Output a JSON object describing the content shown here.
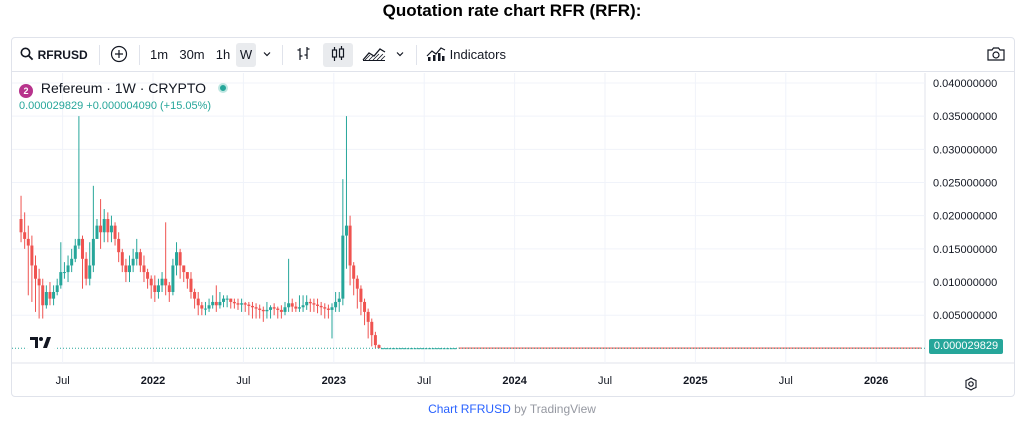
{
  "page_title": "Quotation rate chart RFR (RFR):",
  "toolbar": {
    "symbol": "RFRUSD",
    "intervals": [
      "1m",
      "30m",
      "1h",
      "W"
    ],
    "active_interval": "W",
    "indicators_label": "Indicators"
  },
  "legend": {
    "logo_letter": "2",
    "title": "Refereum · 1W · CRYPTO",
    "values": "0.000029829  +0.000004090 (+15.05%)"
  },
  "price_label": "0.000029829",
  "footer": {
    "link": "Chart RFRUSD",
    "by": "by TradingView"
  },
  "colors": {
    "up": "#26a69a",
    "down": "#ef5350",
    "grid": "#f0f3fa",
    "axis_text": "#131722"
  },
  "chart_data": {
    "type": "candlestick",
    "title": "",
    "yticks": [
      "0.040000000",
      "0.035000000",
      "0.030000000",
      "0.025000000",
      "0.020000000",
      "0.015000000",
      "0.010000000",
      "0.005000000"
    ],
    "ytick_values": [
      0.04,
      0.035,
      0.03,
      0.025,
      0.02,
      0.015,
      0.01,
      0.005
    ],
    "xticks": [
      {
        "label": "Jul",
        "t": 2021.5,
        "bold": false
      },
      {
        "label": "2022",
        "t": 2022.0,
        "bold": true
      },
      {
        "label": "Jul",
        "t": 2022.5,
        "bold": false
      },
      {
        "label": "2023",
        "t": 2023.0,
        "bold": true
      },
      {
        "label": "Jul",
        "t": 2023.5,
        "bold": false
      },
      {
        "label": "2024",
        "t": 2024.0,
        "bold": true
      },
      {
        "label": "Jul",
        "t": 2024.5,
        "bold": false
      },
      {
        "label": "2025",
        "t": 2025.0,
        "bold": true
      },
      {
        "label": "Jul",
        "t": 2025.5,
        "bold": false
      },
      {
        "label": "2026",
        "t": 2026.0,
        "bold": true
      }
    ],
    "ylim": [
      -0.0022,
      0.0415
    ],
    "xlim": [
      2021.22,
      2026.27
    ],
    "last_price": 2.9829e-05,
    "series_sample": {
      "t": [
        2021.27,
        2021.29,
        2021.31,
        2021.33,
        2021.35,
        2021.37,
        2021.39,
        2021.41,
        2021.43,
        2021.45,
        2021.47,
        2021.49,
        2021.51,
        2021.53,
        2021.55,
        2021.57,
        2021.59,
        2021.61,
        2021.63,
        2021.65,
        2021.67,
        2021.69,
        2021.71,
        2021.73,
        2021.75,
        2021.77,
        2021.79,
        2021.81,
        2021.83,
        2021.85,
        2021.87,
        2021.89,
        2021.91,
        2021.93,
        2021.95,
        2021.97,
        2021.99,
        2022.01,
        2022.03,
        2022.05,
        2022.07,
        2022.09,
        2022.11,
        2022.13,
        2022.15,
        2022.17,
        2022.19,
        2022.21,
        2022.23,
        2022.25,
        2022.27,
        2022.29,
        2022.31,
        2022.33,
        2022.35,
        2022.37,
        2022.39,
        2022.41,
        2022.43,
        2022.45,
        2022.47,
        2022.49,
        2022.51,
        2022.53,
        2022.55,
        2022.57,
        2022.59,
        2022.61,
        2022.63,
        2022.65,
        2022.67,
        2022.69,
        2022.71,
        2022.73,
        2022.75,
        2022.77,
        2022.79,
        2022.81,
        2022.83,
        2022.85,
        2022.87,
        2022.89,
        2022.91,
        2022.93,
        2022.95,
        2022.97,
        2022.99,
        2023.01,
        2023.03,
        2023.05,
        2023.07,
        2023.09,
        2023.11,
        2023.13,
        2023.15,
        2023.17,
        2023.19,
        2023.21,
        2023.23,
        2023.25,
        2023.27,
        2023.29,
        2023.31,
        2023.33,
        2023.35,
        2023.37,
        2023.39,
        2023.41,
        2023.43,
        2023.45,
        2023.47,
        2023.49,
        2023.51,
        2023.53,
        2023.55,
        2023.57,
        2023.59,
        2023.61,
        2023.63,
        2023.65,
        2023.67
      ],
      "o": [
        0.0195,
        0.0175,
        0.0165,
        0.0155,
        0.0125,
        0.0105,
        0.0095,
        0.0065,
        0.0085,
        0.0075,
        0.0085,
        0.0095,
        0.0115,
        0.0115,
        0.0125,
        0.0135,
        0.0155,
        0.0165,
        0.0135,
        0.0105,
        0.0125,
        0.0165,
        0.0185,
        0.0175,
        0.0195,
        0.0175,
        0.0185,
        0.0165,
        0.0145,
        0.0125,
        0.0115,
        0.0125,
        0.0135,
        0.0145,
        0.0125,
        0.0115,
        0.0105,
        0.0095,
        0.0085,
        0.0095,
        0.0105,
        0.0095,
        0.0085,
        0.0125,
        0.0145,
        0.0125,
        0.0115,
        0.0105,
        0.0085,
        0.0075,
        0.0065,
        0.006,
        0.006,
        0.0065,
        0.007,
        0.0065,
        0.007,
        0.0075,
        0.0075,
        0.007,
        0.0068,
        0.0066,
        0.0068,
        0.0066,
        0.0064,
        0.0062,
        0.006,
        0.0058,
        0.0056,
        0.0058,
        0.0062,
        0.006,
        0.0058,
        0.0055,
        0.0062,
        0.0068,
        0.0063,
        0.006,
        0.0062,
        0.0065,
        0.007,
        0.0068,
        0.0066,
        0.0064,
        0.0062,
        0.006,
        0.0058,
        0.0062,
        0.007,
        0.0075,
        0.017,
        0.0185,
        0.0125,
        0.0105,
        0.009,
        0.007,
        0.0055,
        0.004,
        0.002,
        0.0005,
        3e-05,
        3e-05,
        3e-05,
        3e-05,
        3e-05,
        3e-05,
        3e-05,
        3e-05,
        3e-05,
        3e-05,
        3e-05,
        3e-05,
        3e-05,
        3e-05,
        3e-05,
        3e-05,
        3e-05,
        3e-05,
        3e-05,
        3e-05,
        3e-05
      ],
      "c": [
        0.0175,
        0.0165,
        0.0155,
        0.0125,
        0.0105,
        0.0095,
        0.0065,
        0.0085,
        0.0075,
        0.0085,
        0.0095,
        0.0115,
        0.0115,
        0.0125,
        0.0135,
        0.0155,
        0.0165,
        0.0135,
        0.0105,
        0.0125,
        0.0165,
        0.0185,
        0.0175,
        0.0195,
        0.0175,
        0.0185,
        0.0165,
        0.0145,
        0.0125,
        0.0115,
        0.0125,
        0.0135,
        0.0145,
        0.0125,
        0.0115,
        0.0105,
        0.0095,
        0.0085,
        0.0095,
        0.0105,
        0.0095,
        0.0085,
        0.0125,
        0.0145,
        0.0125,
        0.0115,
        0.0105,
        0.0085,
        0.0075,
        0.0065,
        0.006,
        0.006,
        0.0065,
        0.007,
        0.0065,
        0.007,
        0.0075,
        0.0075,
        0.007,
        0.0068,
        0.0066,
        0.0068,
        0.0066,
        0.0064,
        0.0062,
        0.006,
        0.0058,
        0.0056,
        0.0058,
        0.0062,
        0.006,
        0.0058,
        0.0055,
        0.0062,
        0.0068,
        0.0063,
        0.006,
        0.0062,
        0.0065,
        0.007,
        0.0068,
        0.0066,
        0.0064,
        0.0062,
        0.006,
        0.0058,
        0.0062,
        0.007,
        0.0075,
        0.017,
        0.0185,
        0.0125,
        0.0105,
        0.009,
        0.007,
        0.0055,
        0.004,
        0.002,
        0.0005,
        3e-05,
        3e-05,
        3e-05,
        3e-05,
        3e-05,
        3e-05,
        3e-05,
        3e-05,
        3e-05,
        3e-05,
        3e-05,
        3e-05,
        3e-05,
        3e-05,
        3e-05,
        3e-05,
        3e-05,
        3e-05,
        3e-05,
        3e-05,
        3e-05,
        3e-05
      ],
      "h": [
        0.023,
        0.0205,
        0.0185,
        0.017,
        0.014,
        0.012,
        0.0105,
        0.0095,
        0.01,
        0.0095,
        0.0105,
        0.016,
        0.013,
        0.014,
        0.015,
        0.0165,
        0.035,
        0.017,
        0.0145,
        0.016,
        0.0245,
        0.0195,
        0.0225,
        0.021,
        0.0205,
        0.02,
        0.019,
        0.0175,
        0.015,
        0.0135,
        0.014,
        0.015,
        0.0165,
        0.015,
        0.014,
        0.012,
        0.011,
        0.011,
        0.0105,
        0.0115,
        0.019,
        0.01,
        0.0135,
        0.016,
        0.015,
        0.0125,
        0.0115,
        0.0115,
        0.009,
        0.0085,
        0.007,
        0.007,
        0.0075,
        0.008,
        0.0095,
        0.0085,
        0.008,
        0.008,
        0.0075,
        0.0075,
        0.0075,
        0.0075,
        0.007,
        0.007,
        0.007,
        0.0068,
        0.0066,
        0.0063,
        0.007,
        0.0065,
        0.0068,
        0.0063,
        0.0065,
        0.007,
        0.0135,
        0.0075,
        0.007,
        0.008,
        0.008,
        0.008,
        0.0075,
        0.0075,
        0.0075,
        0.007,
        0.0068,
        0.0066,
        0.0068,
        0.0085,
        0.0085,
        0.0255,
        0.035,
        0.02,
        0.013,
        0.011,
        0.0095,
        0.0075,
        0.006,
        0.0045,
        0.0025,
        0.0006,
        4e-05,
        4e-05,
        4e-05,
        4e-05,
        4e-05,
        4e-05,
        4e-05,
        4e-05,
        4e-05,
        4e-05,
        4e-05,
        4e-05,
        4e-05,
        4e-05,
        4e-05,
        4e-05,
        4e-05,
        4e-05,
        4e-05,
        4e-05,
        4e-05
      ],
      "l": [
        0.016,
        0.015,
        0.008,
        0.007,
        0.0055,
        0.0045,
        0.0045,
        0.006,
        0.0065,
        0.0065,
        0.008,
        0.009,
        0.0105,
        0.01,
        0.0115,
        0.013,
        0.015,
        0.009,
        0.0095,
        0.0095,
        0.0115,
        0.0165,
        0.015,
        0.016,
        0.016,
        0.016,
        0.0155,
        0.013,
        0.0115,
        0.01,
        0.01,
        0.0115,
        0.0125,
        0.0115,
        0.01,
        0.009,
        0.0075,
        0.007,
        0.0075,
        0.0085,
        0.008,
        0.007,
        0.008,
        0.011,
        0.0105,
        0.01,
        0.009,
        0.0075,
        0.006,
        0.005,
        0.005,
        0.005,
        0.0055,
        0.006,
        0.0055,
        0.006,
        0.0062,
        0.0062,
        0.006,
        0.006,
        0.0058,
        0.0055,
        0.0055,
        0.005,
        0.0045,
        0.0045,
        0.0045,
        0.004,
        0.0045,
        0.0045,
        0.005,
        0.0045,
        0.0045,
        0.005,
        0.0055,
        0.0055,
        0.0055,
        0.0055,
        0.0055,
        0.0058,
        0.0055,
        0.0055,
        0.0053,
        0.005,
        0.0045,
        0.0045,
        0.0015,
        0.0055,
        0.0055,
        0.0065,
        0.012,
        0.0095,
        0.008,
        0.006,
        0.005,
        0.0035,
        0.0015,
        0.0003,
        2e-05,
        2e-05,
        2e-05,
        2e-05,
        2e-05,
        2e-05,
        2e-05,
        2e-05,
        2e-05,
        2e-05,
        2e-05,
        2e-05,
        2e-05,
        2e-05,
        2e-05,
        2e-05,
        2e-05,
        2e-05,
        2e-05,
        2e-05,
        2e-05,
        2e-05,
        2e-05
      ]
    }
  }
}
